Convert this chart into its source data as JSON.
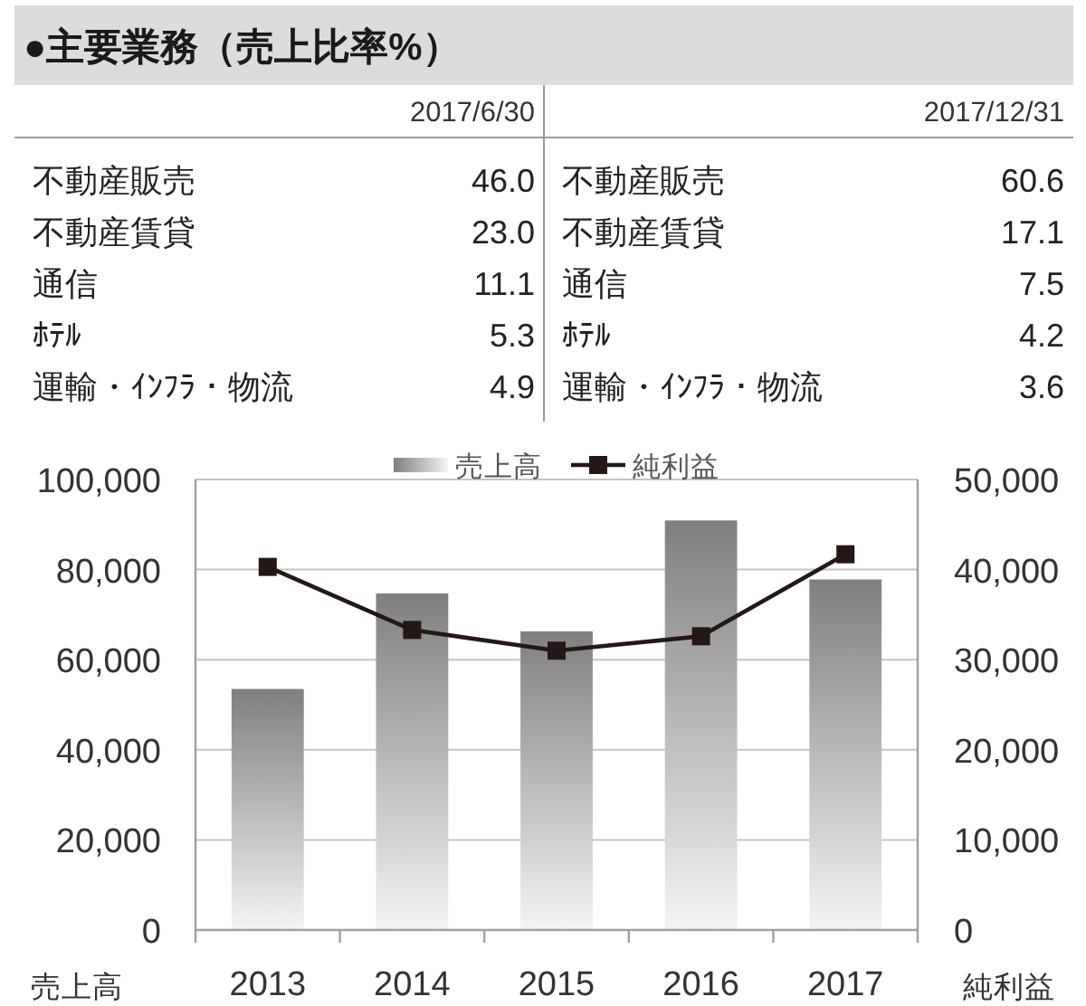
{
  "chart_data": [
    {
      "type": "other",
      "title": "●主要業務（売上比率%）",
      "categories": [
        "不動産販売",
        "不動産賃貸",
        "通信",
        "ﾎﾃﾙ",
        "運輸・ｲﾝﾌﾗ・物流"
      ],
      "series": [
        {
          "name": "2017/6/30",
          "values": [
            46.0,
            23.0,
            11.1,
            5.3,
            4.9
          ],
          "value_labels": [
            "46.0",
            "23.0",
            "11.1",
            "5.3",
            "4.9"
          ]
        },
        {
          "name": "2017/12/31",
          "values": [
            60.6,
            17.1,
            7.5,
            4.2,
            3.6
          ],
          "value_labels": [
            "60.6",
            "17.1",
            "7.5",
            "4.2",
            "3.6"
          ]
        }
      ]
    },
    {
      "type": "bar",
      "categories": [
        "2013",
        "2014",
        "2015",
        "2016",
        "2017"
      ],
      "series": [
        {
          "name": "売上高",
          "color": "#7f7f7f",
          "values": [
            53500,
            74700,
            66300,
            90900,
            77800
          ]
        },
        {
          "name": "純利益",
          "type": "line",
          "axis": "y2",
          "color": "#231815",
          "values": [
            40300,
            33300,
            31000,
            32600,
            41700
          ]
        }
      ],
      "ylabel": "売上高",
      "y2label": "純利益",
      "ylim": [
        0,
        100000
      ],
      "yticks": [
        0,
        {
          "value": 20000,
          "label": "20,000"
        },
        {
          "value": 40000,
          "label": "40,000"
        },
        {
          "value": 60000,
          "label": "60,000"
        },
        {
          "value": 80000,
          "label": "80,000"
        },
        {
          "value": 100000,
          "label": "100,000"
        }
      ],
      "y2lim": [
        0,
        50000
      ],
      "y2ticks": [
        0,
        {
          "value": 10000,
          "label": "10,000"
        },
        {
          "value": 20000,
          "label": "20,000"
        },
        {
          "value": 30000,
          "label": "30,000"
        },
        {
          "value": 40000,
          "label": "40,000"
        },
        {
          "value": 50000,
          "label": "50,000"
        }
      ],
      "grid": "y",
      "legend": "top",
      "marker": "square"
    }
  ]
}
